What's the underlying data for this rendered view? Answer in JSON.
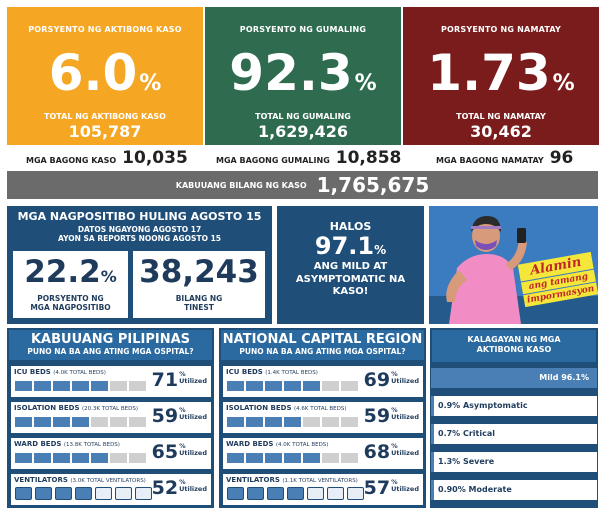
{
  "colors": {
    "active": "#f5a623",
    "recovered": "#2e6b4f",
    "died": "#7b1c1c",
    "navy": "#1f4e79",
    "gray": "#6b6b6b"
  },
  "active_panel": {
    "label": "PORSYENTO NG AKTIBONG KASO",
    "percent": "6.0",
    "percent_sign": "%",
    "total_label": "TOTAL NG AKTIBONG KASO",
    "total": "105,787"
  },
  "recovered_panel": {
    "label": "PORSYENTO NG GUMALING",
    "percent": "92.3",
    "percent_sign": "%",
    "total_label": "TOTAL NG GUMALING",
    "total": "1,629,426"
  },
  "died_panel": {
    "label": "PORSYENTO NG NAMATAY",
    "percent": "1.73",
    "percent_sign": "%",
    "total_label": "TOTAL NG NAMATAY",
    "total": "30,462"
  },
  "new_cases": {
    "label": "MGA BAGONG KASO",
    "value": "10,035"
  },
  "new_recovered": {
    "label": "MGA BAGONG GUMALING",
    "value": "10,858"
  },
  "new_died": {
    "label": "MGA BAGONG NAMATAY",
    "value": "96"
  },
  "total_cases": {
    "label": "KABUUANG BILANG NG KASO",
    "value": "1,765,675"
  },
  "positivity": {
    "title": "MGA NAGPOSITIBO HULING AGOSTO 15",
    "line1": "DATOS NGAYONG AGOSTO 17",
    "line2": "AYON SA REPORTS NOONG AGOSTO 15",
    "percent": "22.2",
    "percent_sign": "%",
    "percent_label": "PORSYENTO NG MGA NAGPOSITIBO",
    "tested": "38,243",
    "tested_label": "BILANG NG TINEST"
  },
  "mild": {
    "line1": "HALOS",
    "percent": "97.1",
    "percent_sign": "%",
    "line2": "ANG MILD AT ASYMPTOMATIC NA KASO!"
  },
  "promo": {
    "line1": "Alamin",
    "line2": "ang tamang",
    "line3": "impormasyon"
  },
  "hospital_ph": {
    "title": "KABUUANG PILIPINAS",
    "subtitle": "PUNO NA BA ANG ATING MGA OSPITAL?",
    "rows": [
      {
        "name": "ICU BEDS",
        "capacity": "(4.0K TOTAL BEDS)",
        "utilized": "71",
        "filled": 5,
        "unit": "%",
        "unit_label": "Utilized"
      },
      {
        "name": "ISOLATION BEDS",
        "capacity": "(20.3K TOTAL BEDS)",
        "utilized": "59",
        "filled": 4,
        "unit": "%",
        "unit_label": "Utilized"
      },
      {
        "name": "WARD BEDS",
        "capacity": "(13.8K TOTAL BEDS)",
        "utilized": "65",
        "filled": 5,
        "unit": "%",
        "unit_label": "Utilized"
      },
      {
        "name": "VENTILATORS",
        "capacity": "(3.0K TOTAL VENTILATORS)",
        "utilized": "52",
        "filled": 4,
        "unit": "%",
        "unit_label": "Utilized"
      }
    ]
  },
  "hospital_ncr": {
    "title": "NATIONAL CAPITAL REGION",
    "subtitle": "PUNO NA BA ANG ATING MGA OSPITAL?",
    "rows": [
      {
        "name": "ICU BEDS",
        "capacity": "(1.4K TOTAL BEDS)",
        "utilized": "69",
        "filled": 5,
        "unit": "%",
        "unit_label": "Utilized"
      },
      {
        "name": "ISOLATION BEDS",
        "capacity": "(4.6K TOTAL BEDS)",
        "utilized": "59",
        "filled": 4,
        "unit": "%",
        "unit_label": "Utilized"
      },
      {
        "name": "WARD BEDS",
        "capacity": "(4.0K TOTAL BEDS)",
        "utilized": "68",
        "filled": 5,
        "unit": "%",
        "unit_label": "Utilized"
      },
      {
        "name": "VENTILATORS",
        "capacity": "(1.1K TOTAL VENTILATORS)",
        "utilized": "57",
        "filled": 4,
        "unit": "%",
        "unit_label": "Utilized"
      }
    ]
  },
  "status": {
    "title": "KALAGAYAN NG MGA AKTIBONG KASO",
    "items": [
      {
        "label": "Mild 96.1%",
        "share": 0.961
      },
      {
        "label": "0.9% Asymptomatic",
        "share": 0.009
      },
      {
        "label": "0.7% Critical",
        "share": 0.007
      },
      {
        "label": "1.3% Severe",
        "share": 0.013
      },
      {
        "label": "0.90% Moderate",
        "share": 0.009
      }
    ]
  }
}
